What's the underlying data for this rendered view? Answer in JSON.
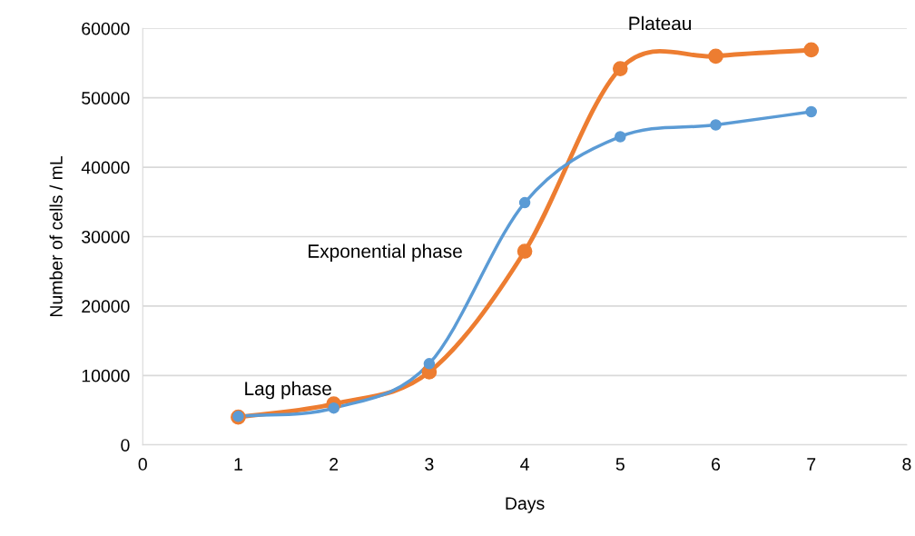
{
  "chart_data": {
    "type": "line",
    "xlabel": "Days",
    "ylabel": "Number of cells / mL",
    "x": [
      1,
      2,
      3,
      4,
      5,
      6,
      7
    ],
    "series": [
      {
        "color": "#ed7d31",
        "values": [
          4000,
          5900,
          10500,
          27900,
          54200,
          56000,
          56900
        ]
      },
      {
        "color": "#5b9bd5",
        "values": [
          4100,
          5300,
          11700,
          34900,
          44400,
          46100,
          48000
        ]
      }
    ],
    "xlim": [
      0,
      8
    ],
    "xticks": [
      0,
      1,
      2,
      3,
      4,
      5,
      6,
      7,
      8
    ],
    "ylim": [
      0,
      60000
    ],
    "yticks": [
      0,
      10000,
      20000,
      30000,
      40000,
      50000,
      60000
    ],
    "grid": "y",
    "marker": "circle",
    "line_style": "solid",
    "annotations": [
      "Lag phase",
      "Exponential phase",
      "Plateau"
    ]
  }
}
